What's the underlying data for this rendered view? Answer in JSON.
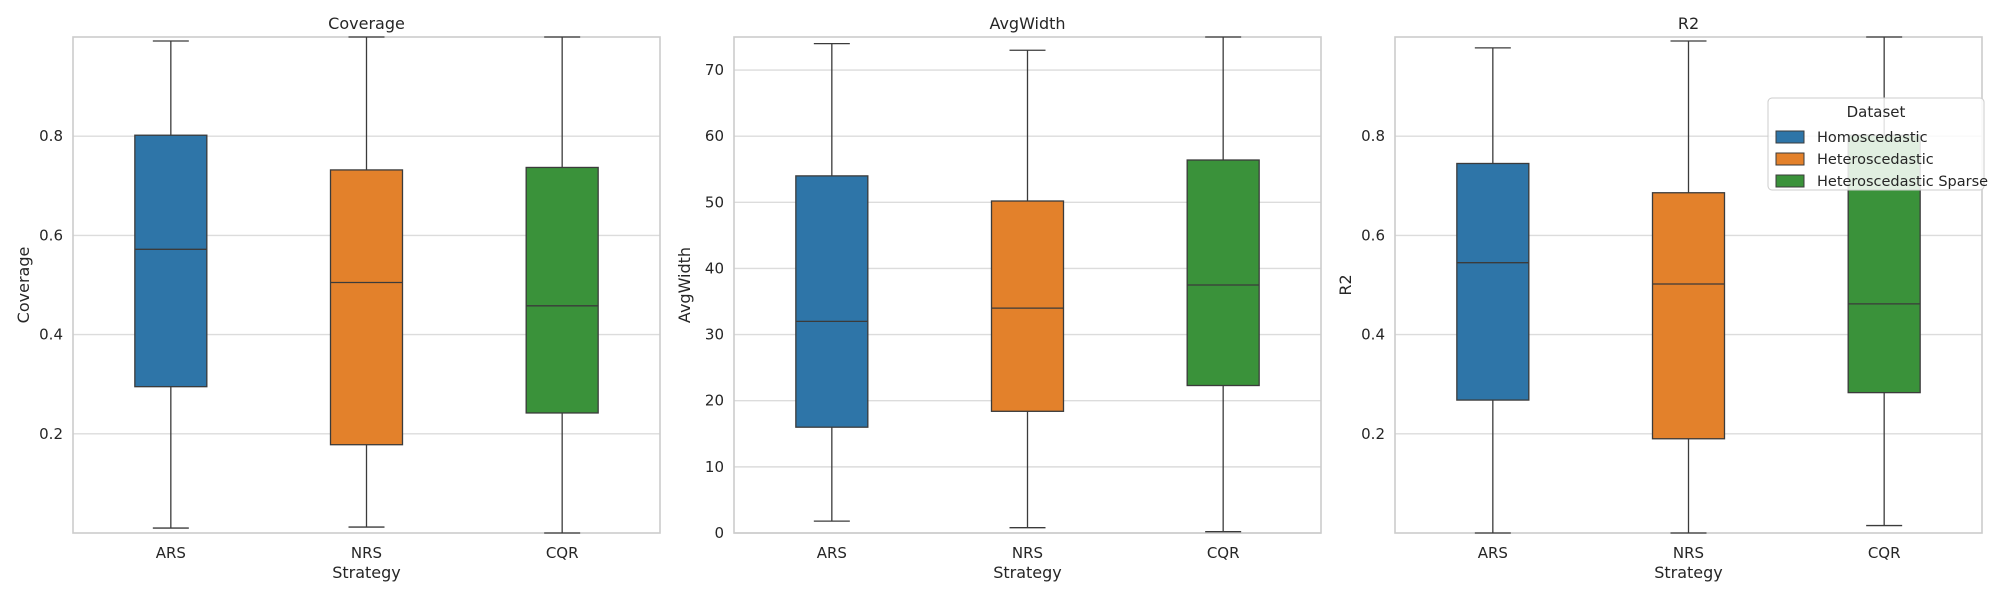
{
  "figure": {
    "legend": {
      "title": "Dataset",
      "entries": [
        {
          "label": "Homoscedastic",
          "color": "#2e75a8"
        },
        {
          "label": "Heteroscedastic",
          "color": "#e3812b"
        },
        {
          "label": "Heteroscedastic Sparse",
          "color": "#3a923a"
        }
      ],
      "placement": "upper-right of third panel"
    },
    "grid": true
  },
  "chart_data": [
    {
      "type": "box",
      "title": "Coverage",
      "xlabel": "Strategy",
      "ylabel": "Coverage",
      "categories": [
        "ARS",
        "NRS",
        "CQR"
      ],
      "ylim": [
        0.0,
        1.0
      ],
      "yticks": [
        0.2,
        0.4,
        0.6,
        0.8
      ],
      "ytick_labels": [
        "0.2",
        "0.4",
        "0.6",
        "0.8"
      ],
      "series": [
        {
          "name": "Homoscedastic",
          "category": "ARS",
          "whisker_low": 0.01,
          "q1": 0.295,
          "median": 0.572,
          "q3": 0.802,
          "whisker_high": 0.992
        },
        {
          "name": "Heteroscedastic",
          "category": "NRS",
          "whisker_low": 0.012,
          "q1": 0.178,
          "median": 0.505,
          "q3": 0.732,
          "whisker_high": 1.0
        },
        {
          "name": "Heteroscedastic Sparse",
          "category": "CQR",
          "whisker_low": 0.0,
          "q1": 0.242,
          "median": 0.458,
          "q3": 0.737,
          "whisker_high": 1.0
        }
      ]
    },
    {
      "type": "box",
      "title": "AvgWidth",
      "xlabel": "Strategy",
      "ylabel": "AvgWidth",
      "categories": [
        "ARS",
        "NRS",
        "CQR"
      ],
      "ylim": [
        0,
        75
      ],
      "yticks": [
        0,
        10,
        20,
        30,
        40,
        50,
        60,
        70
      ],
      "ytick_labels": [
        "0",
        "10",
        "20",
        "30",
        "40",
        "50",
        "60",
        "70"
      ],
      "series": [
        {
          "name": "Homoscedastic",
          "category": "ARS",
          "whisker_low": 1.8,
          "q1": 16.0,
          "median": 32.0,
          "q3": 54.0,
          "whisker_high": 74.0
        },
        {
          "name": "Heteroscedastic",
          "category": "NRS",
          "whisker_low": 0.8,
          "q1": 18.4,
          "median": 34.0,
          "q3": 50.2,
          "whisker_high": 73.0
        },
        {
          "name": "Heteroscedastic Sparse",
          "category": "CQR",
          "whisker_low": 0.2,
          "q1": 22.3,
          "median": 37.5,
          "q3": 56.4,
          "whisker_high": 75.0
        }
      ]
    },
    {
      "type": "box",
      "title": "R2",
      "xlabel": "Strategy",
      "ylabel": "R2",
      "categories": [
        "ARS",
        "NRS",
        "CQR"
      ],
      "ylim": [
        0.0,
        1.0
      ],
      "yticks": [
        0.2,
        0.4,
        0.6,
        0.8
      ],
      "ytick_labels": [
        "0.2",
        "0.4",
        "0.6",
        "0.8"
      ],
      "series": [
        {
          "name": "Homoscedastic",
          "category": "ARS",
          "whisker_low": 0.0,
          "q1": 0.268,
          "median": 0.545,
          "q3": 0.745,
          "whisker_high": 0.978
        },
        {
          "name": "Heteroscedastic",
          "category": "NRS",
          "whisker_low": 0.0,
          "q1": 0.19,
          "median": 0.502,
          "q3": 0.686,
          "whisker_high": 0.992
        },
        {
          "name": "Heteroscedastic Sparse",
          "category": "CQR",
          "whisker_low": 0.015,
          "q1": 0.283,
          "median": 0.462,
          "q3": 0.802,
          "whisker_high": 1.0
        }
      ]
    }
  ]
}
